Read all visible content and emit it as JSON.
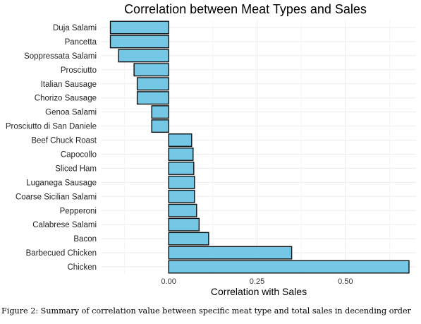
{
  "chart_data": {
    "type": "bar",
    "orientation": "horizontal",
    "title": "Correlation between Meat Types and Sales",
    "xlabel": "Correlation with Sales",
    "ylabel": "",
    "xlim": [
      -0.19,
      0.7
    ],
    "xticks": [
      0.0,
      0.25,
      0.5
    ],
    "xtick_labels": [
      "0.00",
      "0.25",
      "0.50"
    ],
    "grid": true,
    "bar_color": "#74c8e6",
    "bar_edge_color": "#111111",
    "categories": [
      "Duja Salami",
      "Pancetta",
      "Soppressata Salami",
      "Prosciutto",
      "Italian Sausage",
      "Chorizo Sausage",
      "Genoa Salami",
      "Prosciutto di San Daniele",
      "Beef Chuck Roast",
      "Capocollo",
      "Sliced Ham",
      "Luganega Sausage",
      "Coarse Sicilian Salami",
      "Pepperoni",
      "Calabrese Salami",
      "Bacon",
      "Barbecued Chicken",
      "Chicken"
    ],
    "values": [
      -0.165,
      -0.165,
      -0.142,
      -0.098,
      -0.089,
      -0.089,
      -0.048,
      -0.048,
      0.065,
      0.069,
      0.071,
      0.073,
      0.073,
      0.079,
      0.086,
      0.113,
      0.348,
      0.68
    ]
  },
  "caption": "Figure 2: Summary of correlation value between specific meat type and total sales in decending order"
}
